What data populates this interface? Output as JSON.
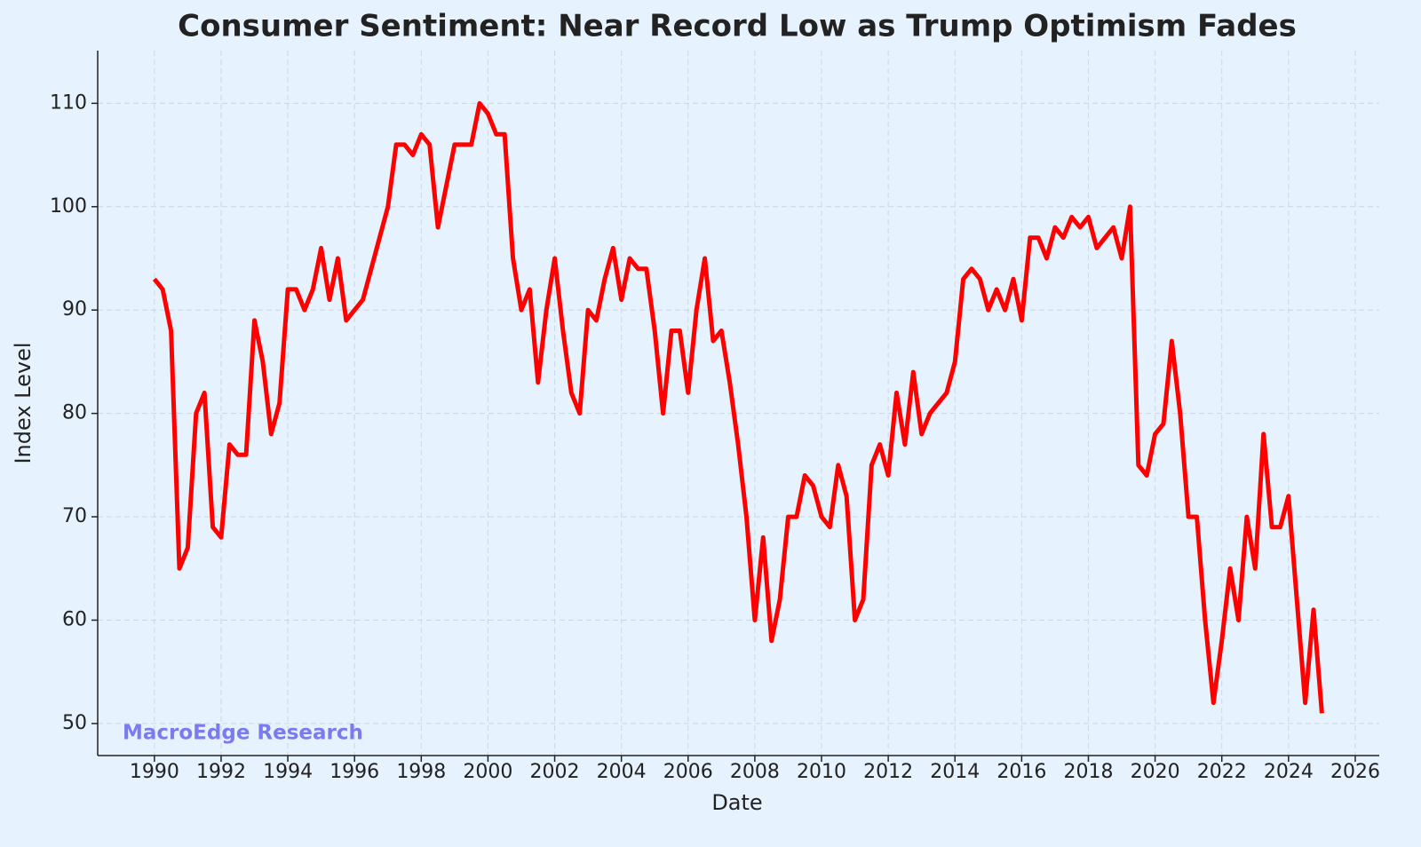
{
  "chart_data": {
    "type": "line",
    "title": "Consumer Sentiment: Near Record Low as Trump Optimism Fades",
    "x_label": "Date",
    "y_label": "Index Level",
    "annotation": "MacroEdge Research",
    "grid": true,
    "xlim": [
      1988.3,
      2026.72
    ],
    "ylim": [
      46.9,
      115.1
    ],
    "xticks": [
      1990,
      1992,
      1994,
      1996,
      1998,
      2000,
      2002,
      2004,
      2006,
      2008,
      2010,
      2012,
      2014,
      2016,
      2018,
      2020,
      2022,
      2024,
      2026
    ],
    "yticks": [
      50,
      60,
      70,
      80,
      90,
      100,
      110
    ],
    "x": [
      1990,
      1990.25,
      1990.5,
      1990.75,
      1991,
      1991.25,
      1991.5,
      1991.75,
      1992,
      1992.25,
      1992.5,
      1992.75,
      1993,
      1993.25,
      1993.5,
      1993.75,
      1994,
      1994.25,
      1994.5,
      1994.75,
      1995,
      1995.25,
      1995.5,
      1995.75,
      1996,
      1996.25,
      1996.5,
      1996.75,
      1997,
      1997.25,
      1997.5,
      1997.75,
      1998,
      1998.25,
      1998.5,
      1998.75,
      1999,
      1999.25,
      1999.5,
      1999.75,
      2000,
      2000.25,
      2000.5,
      2000.75,
      2001,
      2001.25,
      2001.5,
      2001.75,
      2002,
      2002.25,
      2002.5,
      2002.75,
      2003,
      2003.25,
      2003.5,
      2003.75,
      2004,
      2004.25,
      2004.5,
      2004.75,
      2005,
      2005.25,
      2005.5,
      2005.75,
      2006,
      2006.25,
      2006.5,
      2006.75,
      2007,
      2007.25,
      2007.5,
      2007.75,
      2008,
      2008.25,
      2008.5,
      2008.75,
      2009,
      2009.25,
      2009.5,
      2009.75,
      2010,
      2010.25,
      2010.5,
      2010.75,
      2011,
      2011.25,
      2011.5,
      2011.75,
      2012,
      2012.25,
      2012.5,
      2012.75,
      2013,
      2013.25,
      2013.5,
      2013.75,
      2014,
      2014.25,
      2014.5,
      2014.75,
      2015,
      2015.25,
      2015.5,
      2015.75,
      2016,
      2016.25,
      2016.5,
      2016.75,
      2017,
      2017.25,
      2017.5,
      2017.75,
      2018,
      2018.25,
      2018.5,
      2018.75,
      2019,
      2019.25,
      2019.5,
      2019.75,
      2020,
      2020.25,
      2020.5,
      2020.75,
      2021,
      2021.25,
      2021.5,
      2021.75,
      2022,
      2022.25,
      2022.5,
      2022.75,
      2023,
      2023.25,
      2023.5,
      2023.75,
      2024,
      2024.25,
      2024.5,
      2024.75,
      2025
    ],
    "series": [
      {
        "name": "Consumer Sentiment",
        "color": "#ff0000",
        "values": [
          93,
          92,
          88,
          65,
          67,
          80,
          82,
          69,
          68,
          77,
          76,
          76,
          89,
          85,
          78,
          81,
          92,
          92,
          90,
          92,
          96,
          91,
          95,
          89,
          90,
          91,
          94,
          97,
          100,
          106,
          106,
          105,
          107,
          106,
          98,
          102,
          106,
          106,
          106,
          110,
          109,
          107,
          107,
          95,
          90,
          92,
          83,
          90,
          95,
          88,
          82,
          80,
          90,
          89,
          93,
          96,
          91,
          95,
          94,
          94,
          88,
          80,
          88,
          88,
          82,
          90,
          95,
          87,
          88,
          83,
          77,
          70,
          60,
          68,
          58,
          62,
          70,
          70,
          74,
          73,
          70,
          69,
          75,
          72,
          60,
          62,
          75,
          77,
          74,
          82,
          77,
          84,
          78,
          80,
          81,
          82,
          85,
          93,
          94,
          93,
          90,
          92,
          90,
          93,
          89,
          97,
          97,
          95,
          98,
          97,
          99,
          98,
          99,
          96,
          97,
          98,
          95,
          100,
          75,
          74,
          78,
          79,
          87,
          80,
          70,
          70,
          60,
          52,
          58,
          65,
          60,
          70,
          65,
          78,
          69,
          69,
          72,
          62,
          52,
          61,
          51
        ]
      }
    ]
  }
}
